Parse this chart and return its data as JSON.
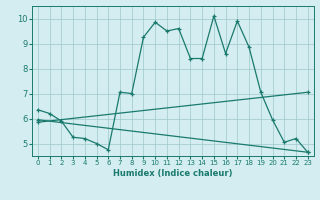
{
  "xlabel": "Humidex (Indice chaleur)",
  "bg_color": "#d4edf0",
  "grid_color": "#9dc8cc",
  "line_color": "#1a7a6e",
  "xlim": [
    -0.5,
    23.5
  ],
  "ylim": [
    4.5,
    10.5
  ],
  "xticks": [
    0,
    1,
    2,
    3,
    4,
    5,
    6,
    7,
    8,
    9,
    10,
    11,
    12,
    13,
    14,
    15,
    16,
    17,
    18,
    19,
    20,
    21,
    22,
    23
  ],
  "yticks": [
    5,
    6,
    7,
    8,
    9,
    10
  ],
  "line1_x": [
    0,
    1,
    2,
    3,
    4,
    5,
    6,
    7,
    8,
    9,
    10,
    11,
    12,
    13,
    14,
    15,
    16,
    17,
    18,
    19,
    20,
    21,
    22,
    23
  ],
  "line1_y": [
    6.35,
    6.2,
    5.9,
    5.25,
    5.2,
    5.0,
    4.75,
    7.05,
    7.0,
    9.25,
    9.85,
    9.5,
    9.6,
    8.4,
    8.4,
    10.1,
    8.6,
    9.9,
    8.85,
    7.05,
    5.95,
    5.05,
    5.2,
    4.65
  ],
  "line2_x": [
    0,
    23
  ],
  "line2_y": [
    5.85,
    7.05
  ],
  "line3_x": [
    0,
    23
  ],
  "line3_y": [
    5.95,
    4.65
  ],
  "marker": "+"
}
